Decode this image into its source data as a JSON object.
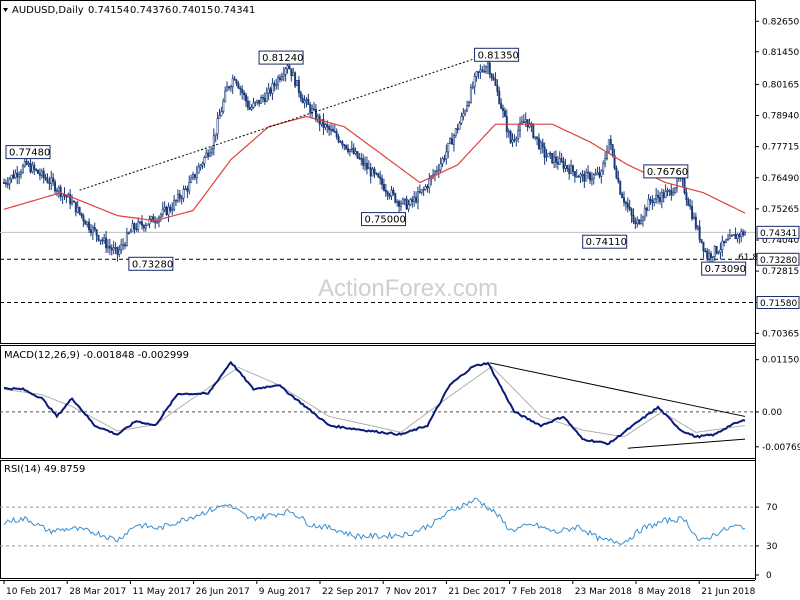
{
  "chart_data": [
    {
      "type": "candlestick",
      "title": "AUDUSD,Daily",
      "ohlc_values": [
        "0.74154",
        "0.74376",
        "0.74015",
        "0.74341"
      ],
      "ylim": [
        0.703,
        0.827
      ],
      "y_ticks": [
        "0.82650",
        "0.81450",
        "0.80165",
        "0.78940",
        "0.77715",
        "0.76490",
        "0.75265",
        "0.74040",
        "0.72815",
        "0.71580",
        "0.70365"
      ],
      "x_ticks": [
        "10 Feb 2017",
        "28 Mar 2017",
        "11 May 2017",
        "26 Jun 2017",
        "9 Aug 2017",
        "22 Sep 2017",
        "7 Nov 2017",
        "21 Dec 2017",
        "7 Feb 2018",
        "23 Mar 2018",
        "8 May 2018",
        "21 Jun 2018"
      ],
      "close_anchors": [
        {
          "t": 0,
          "v": 0.763
        },
        {
          "t": 12,
          "v": 0.77
        },
        {
          "t": 25,
          "v": 0.763
        },
        {
          "t": 35,
          "v": 0.756
        },
        {
          "t": 45,
          "v": 0.746
        },
        {
          "t": 55,
          "v": 0.738
        },
        {
          "t": 60,
          "v": 0.735
        },
        {
          "t": 68,
          "v": 0.745
        },
        {
          "t": 78,
          "v": 0.748
        },
        {
          "t": 88,
          "v": 0.753
        },
        {
          "t": 98,
          "v": 0.762
        },
        {
          "t": 110,
          "v": 0.778
        },
        {
          "t": 118,
          "v": 0.8
        },
        {
          "t": 122,
          "v": 0.805
        },
        {
          "t": 130,
          "v": 0.792
        },
        {
          "t": 140,
          "v": 0.798
        },
        {
          "t": 150,
          "v": 0.81
        },
        {
          "t": 158,
          "v": 0.796
        },
        {
          "t": 168,
          "v": 0.786
        },
        {
          "t": 178,
          "v": 0.78
        },
        {
          "t": 188,
          "v": 0.772
        },
        {
          "t": 198,
          "v": 0.764
        },
        {
          "t": 208,
          "v": 0.756
        },
        {
          "t": 214,
          "v": 0.754
        },
        {
          "t": 222,
          "v": 0.76
        },
        {
          "t": 232,
          "v": 0.772
        },
        {
          "t": 242,
          "v": 0.788
        },
        {
          "t": 250,
          "v": 0.805
        },
        {
          "t": 256,
          "v": 0.81
        },
        {
          "t": 262,
          "v": 0.796
        },
        {
          "t": 268,
          "v": 0.779
        },
        {
          "t": 276,
          "v": 0.788
        },
        {
          "t": 286,
          "v": 0.774
        },
        {
          "t": 296,
          "v": 0.77
        },
        {
          "t": 306,
          "v": 0.765
        },
        {
          "t": 316,
          "v": 0.766
        },
        {
          "t": 320,
          "v": 0.78
        },
        {
          "t": 326,
          "v": 0.76
        },
        {
          "t": 334,
          "v": 0.746
        },
        {
          "t": 342,
          "v": 0.756
        },
        {
          "t": 352,
          "v": 0.759
        },
        {
          "t": 358,
          "v": 0.765
        },
        {
          "t": 366,
          "v": 0.746
        },
        {
          "t": 372,
          "v": 0.734
        },
        {
          "t": 380,
          "v": 0.738
        },
        {
          "t": 387,
          "v": 0.742
        },
        {
          "t": 392,
          "v": 0.7434
        }
      ],
      "ma_anchors": [
        {
          "t": 0,
          "v": 0.7525
        },
        {
          "t": 30,
          "v": 0.759
        },
        {
          "t": 60,
          "v": 0.75
        },
        {
          "t": 80,
          "v": 0.748
        },
        {
          "t": 100,
          "v": 0.752
        },
        {
          "t": 120,
          "v": 0.772
        },
        {
          "t": 140,
          "v": 0.785
        },
        {
          "t": 160,
          "v": 0.789
        },
        {
          "t": 180,
          "v": 0.785
        },
        {
          "t": 200,
          "v": 0.774
        },
        {
          "t": 220,
          "v": 0.763
        },
        {
          "t": 240,
          "v": 0.77
        },
        {
          "t": 260,
          "v": 0.786
        },
        {
          "t": 270,
          "v": 0.786
        },
        {
          "t": 290,
          "v": 0.786
        },
        {
          "t": 310,
          "v": 0.779
        },
        {
          "t": 330,
          "v": 0.77
        },
        {
          "t": 350,
          "v": 0.763
        },
        {
          "t": 370,
          "v": 0.759
        },
        {
          "t": 392,
          "v": 0.751
        }
      ],
      "price_labels": [
        {
          "text": "0.77480",
          "t": 0,
          "v": 0.7748
        },
        {
          "text": "0.73280",
          "t": 65,
          "v": 0.7328
        },
        {
          "text": "0.81240",
          "t": 136,
          "v": 0.8124
        },
        {
          "text": "0.75000",
          "t": 205,
          "v": 0.75
        },
        {
          "text": "0.81350",
          "t": 250,
          "v": 0.8135
        },
        {
          "text": "0.74110",
          "t": 322,
          "v": 0.7411
        },
        {
          "text": "0.76760",
          "t": 348,
          "v": 0.7676
        },
        {
          "text": "0.73090",
          "t": 368,
          "v": 0.7309
        }
      ],
      "right_badges": [
        {
          "text": "0.74341",
          "v": 0.74341
        },
        {
          "text": "0.73280",
          "v": 0.7328
        },
        {
          "text": "0.71580",
          "v": 0.7158
        }
      ],
      "fib_label": "61.8",
      "trendline": [
        {
          "t": 40,
          "v": 0.76
        },
        {
          "t": 256,
          "v": 0.8135
        }
      ],
      "h_lines": [
        {
          "v": 0.7328,
          "style": "dashed",
          "color": "#000000"
        },
        {
          "v": 0.7158,
          "style": "dashed",
          "color": "#000000"
        },
        {
          "v": 0.74341,
          "style": "solid",
          "color": "#c0c0c0"
        }
      ],
      "watermark": "ActionForex.com",
      "colors": {
        "candle": "#1a3a7a",
        "ma": "#e0403a"
      }
    },
    {
      "type": "line",
      "title": "MACD(12,26,9) -0.001848 -0.002999",
      "ylim": [
        -0.0095,
        0.0132
      ],
      "y_ticks": [
        "0.011508",
        "0.00",
        "-0.007694"
      ],
      "macd_anchors": [
        {
          "t": 0,
          "v": 0.0052
        },
        {
          "t": 10,
          "v": 0.005
        },
        {
          "t": 20,
          "v": 0.003
        },
        {
          "t": 28,
          "v": -0.001
        },
        {
          "t": 36,
          "v": 0.003
        },
        {
          "t": 48,
          "v": -0.003
        },
        {
          "t": 60,
          "v": -0.005
        },
        {
          "t": 70,
          "v": -0.002
        },
        {
          "t": 80,
          "v": -0.003
        },
        {
          "t": 92,
          "v": 0.004
        },
        {
          "t": 108,
          "v": 0.004
        },
        {
          "t": 120,
          "v": 0.011
        },
        {
          "t": 132,
          "v": 0.005
        },
        {
          "t": 145,
          "v": 0.006
        },
        {
          "t": 160,
          "v": 0.001
        },
        {
          "t": 172,
          "v": -0.003
        },
        {
          "t": 190,
          "v": -0.004
        },
        {
          "t": 210,
          "v": -0.005
        },
        {
          "t": 224,
          "v": -0.003
        },
        {
          "t": 236,
          "v": 0.006
        },
        {
          "t": 248,
          "v": 0.01
        },
        {
          "t": 256,
          "v": 0.0108
        },
        {
          "t": 270,
          "v": 0.0
        },
        {
          "t": 284,
          "v": -0.003
        },
        {
          "t": 296,
          "v": -0.001
        },
        {
          "t": 306,
          "v": -0.006
        },
        {
          "t": 320,
          "v": -0.007
        },
        {
          "t": 336,
          "v": -0.002
        },
        {
          "t": 346,
          "v": 0.001
        },
        {
          "t": 358,
          "v": -0.004
        },
        {
          "t": 366,
          "v": -0.0055
        },
        {
          "t": 376,
          "v": -0.005
        },
        {
          "t": 384,
          "v": -0.003
        },
        {
          "t": 392,
          "v": -0.0018
        }
      ],
      "signal_anchors": [
        {
          "t": 0,
          "v": 0.005
        },
        {
          "t": 20,
          "v": 0.0038
        },
        {
          "t": 36,
          "v": 0.0012
        },
        {
          "t": 60,
          "v": -0.0042
        },
        {
          "t": 80,
          "v": -0.0028
        },
        {
          "t": 100,
          "v": 0.003
        },
        {
          "t": 124,
          "v": 0.0098
        },
        {
          "t": 145,
          "v": 0.006
        },
        {
          "t": 172,
          "v": -0.001
        },
        {
          "t": 210,
          "v": -0.0045
        },
        {
          "t": 236,
          "v": 0.0035
        },
        {
          "t": 258,
          "v": 0.01
        },
        {
          "t": 284,
          "v": -0.001
        },
        {
          "t": 306,
          "v": -0.004
        },
        {
          "t": 328,
          "v": -0.0055
        },
        {
          "t": 348,
          "v": 0.0
        },
        {
          "t": 366,
          "v": -0.0045
        },
        {
          "t": 392,
          "v": -0.003
        }
      ],
      "trendlines": [
        [
          {
            "t": 257,
            "v": 0.0108
          },
          {
            "t": 392,
            "v": -0.001
          }
        ],
        [
          {
            "t": 330,
            "v": -0.008
          },
          {
            "t": 392,
            "v": -0.006
          }
        ]
      ],
      "colors": {
        "macd": "#0a1a7a",
        "signal": "#b0b0b0"
      }
    },
    {
      "type": "line",
      "title": "RSI(14) 49.8759",
      "ylim": [
        0,
        100
      ],
      "y_ticks": [
        "70",
        "30",
        "0"
      ],
      "rsi_anchors": [
        {
          "t": 0,
          "v": 55
        },
        {
          "t": 12,
          "v": 58
        },
        {
          "t": 24,
          "v": 45
        },
        {
          "t": 36,
          "v": 48
        },
        {
          "t": 48,
          "v": 44
        },
        {
          "t": 60,
          "v": 36
        },
        {
          "t": 70,
          "v": 52
        },
        {
          "t": 82,
          "v": 48
        },
        {
          "t": 96,
          "v": 58
        },
        {
          "t": 108,
          "v": 66
        },
        {
          "t": 118,
          "v": 73
        },
        {
          "t": 130,
          "v": 58
        },
        {
          "t": 142,
          "v": 62
        },
        {
          "t": 152,
          "v": 66
        },
        {
          "t": 162,
          "v": 52
        },
        {
          "t": 174,
          "v": 48
        },
        {
          "t": 186,
          "v": 40
        },
        {
          "t": 200,
          "v": 40
        },
        {
          "t": 214,
          "v": 42
        },
        {
          "t": 226,
          "v": 52
        },
        {
          "t": 238,
          "v": 68
        },
        {
          "t": 250,
          "v": 78
        },
        {
          "t": 260,
          "v": 64
        },
        {
          "t": 268,
          "v": 46
        },
        {
          "t": 280,
          "v": 52
        },
        {
          "t": 292,
          "v": 44
        },
        {
          "t": 304,
          "v": 50
        },
        {
          "t": 316,
          "v": 36
        },
        {
          "t": 328,
          "v": 34
        },
        {
          "t": 338,
          "v": 48
        },
        {
          "t": 350,
          "v": 56
        },
        {
          "t": 360,
          "v": 58
        },
        {
          "t": 368,
          "v": 34
        },
        {
          "t": 378,
          "v": 44
        },
        {
          "t": 386,
          "v": 50
        },
        {
          "t": 392,
          "v": 49.9
        }
      ],
      "colors": {
        "rsi": "#3a8fd0"
      }
    }
  ]
}
